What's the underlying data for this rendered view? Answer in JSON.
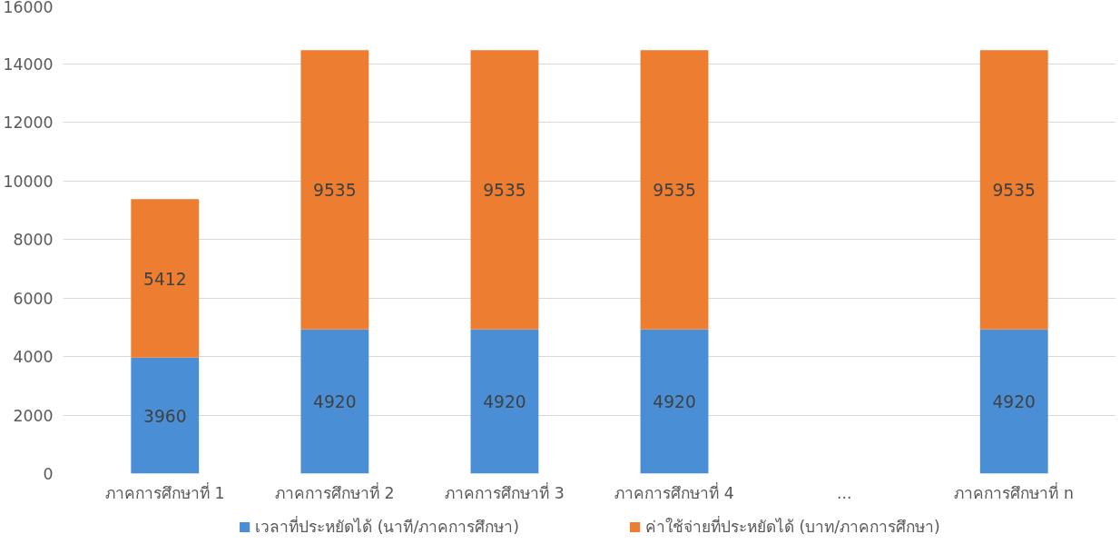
{
  "chart_data": {
    "type": "bar",
    "stacked": true,
    "categories": [
      "ภาคการศึกษาที่ 1",
      "ภาคการศึกษาที่ 2",
      "ภาคการศึกษาที่ 3",
      "ภาคการศึกษาที่ 4",
      "...",
      "ภาคการศึกษาที่ n"
    ],
    "series": [
      {
        "name": "เวลาที่ประหยัดได้ (นาที/ภาคการศึกษา)",
        "color": "#4a8fd6",
        "values": [
          3960,
          4920,
          4920,
          4920,
          null,
          4920
        ]
      },
      {
        "name": "ค่าใช้จ่ายที่ประหยัดได้ (บาท/ภาคการศึกษา)",
        "color": "#ed7d31",
        "values": [
          5412,
          9535,
          9535,
          9535,
          null,
          9535
        ]
      }
    ],
    "ylim": [
      0,
      16000
    ],
    "yticks": [
      0,
      2000,
      4000,
      6000,
      8000,
      10000,
      12000,
      14000,
      16000
    ],
    "grid": "y",
    "legend": "bottom",
    "data_labels": true
  }
}
